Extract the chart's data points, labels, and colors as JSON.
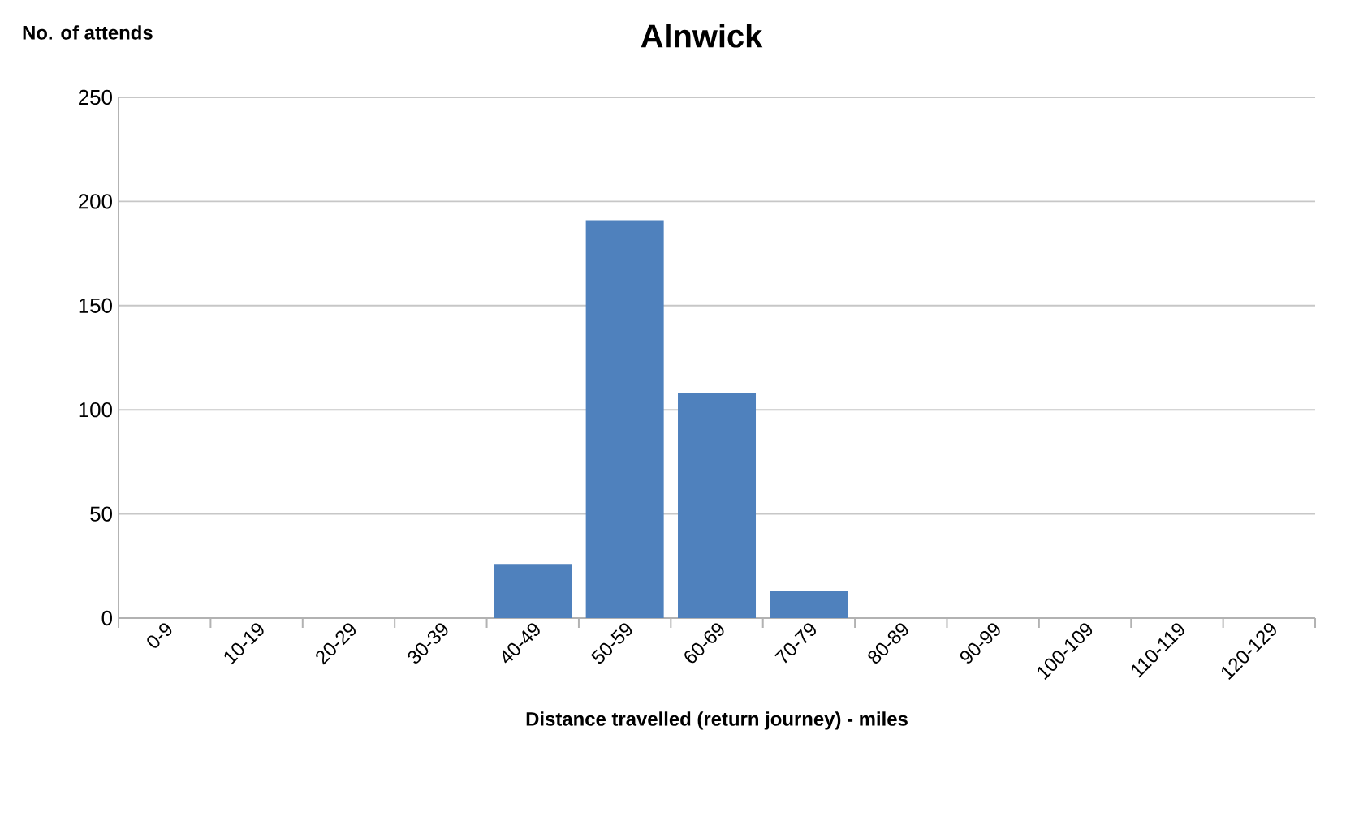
{
  "chart_data": {
    "type": "bar",
    "title": "Alnwick",
    "ylabel": "No. of attends",
    "xlabel": "Distance travelled (return journey) - miles",
    "categories": [
      "0-9",
      "10-19",
      "20-29",
      "30-39",
      "40-49",
      "50-59",
      "60-69",
      "70-79",
      "80-89",
      "90-99",
      "100-109",
      "110-119",
      "120-129"
    ],
    "values": [
      0,
      0,
      0,
      0,
      26,
      191,
      108,
      13,
      0,
      0,
      0,
      0,
      0
    ],
    "color": "#4f81bd",
    "ylim": [
      0,
      250
    ],
    "yticks": [
      0,
      50,
      100,
      150,
      200,
      250
    ],
    "grid": "y"
  }
}
